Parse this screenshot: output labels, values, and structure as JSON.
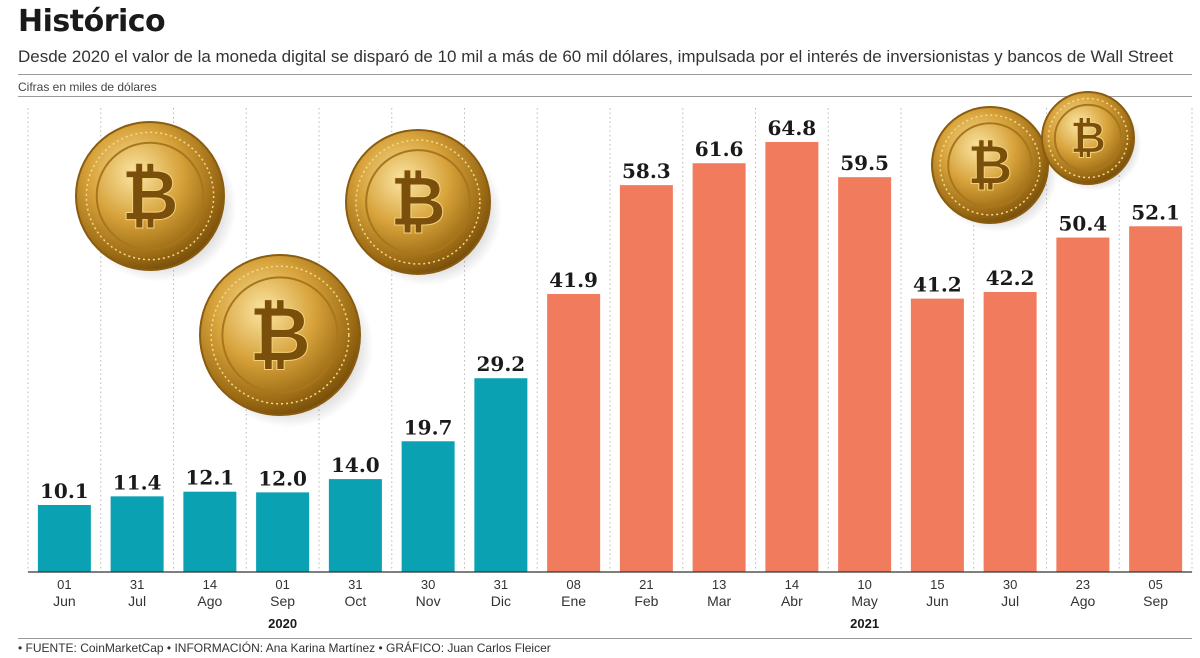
{
  "title": "Histórico",
  "subtitle": "Desde 2020 el valor de la moneda digital se disparó de 10 mil a más de 60 mil dólares, impulsada por el interés de inversionistas y bancos de Wall Street",
  "note": "Cifras en miles de dólares",
  "source": "• FUENTE: CoinMarketCap • INFORMACIÓN: Ana Karina Martínez • GRÁFICO: Juan Carlos Fleicer",
  "colors": {
    "y2020": "#0aa1b3",
    "y2021": "#f07b5d",
    "coin_gold": "#c9962a"
  },
  "chart_data": {
    "type": "bar",
    "categories": [
      {
        "day": "01",
        "month": "Jun",
        "year": "2020"
      },
      {
        "day": "31",
        "month": "Jul",
        "year": "2020"
      },
      {
        "day": "14",
        "month": "Ago",
        "year": "2020"
      },
      {
        "day": "01",
        "month": "Sep",
        "year": "2020"
      },
      {
        "day": "31",
        "month": "Oct",
        "year": "2020"
      },
      {
        "day": "30",
        "month": "Nov",
        "year": "2020"
      },
      {
        "day": "31",
        "month": "Dic",
        "year": "2020"
      },
      {
        "day": "08",
        "month": "Ene",
        "year": "2021"
      },
      {
        "day": "21",
        "month": "Feb",
        "year": "2021"
      },
      {
        "day": "13",
        "month": "Mar",
        "year": "2021"
      },
      {
        "day": "14",
        "month": "Abr",
        "year": "2021"
      },
      {
        "day": "10",
        "month": "May",
        "year": "2021"
      },
      {
        "day": "15",
        "month": "Jun",
        "year": "2021"
      },
      {
        "day": "30",
        "month": "Jul",
        "year": "2021"
      },
      {
        "day": "23",
        "month": "Ago",
        "year": "2021"
      },
      {
        "day": "05",
        "month": "Sep",
        "year": "2021"
      }
    ],
    "values": [
      10.1,
      11.4,
      12.1,
      12.0,
      14.0,
      19.7,
      29.2,
      41.9,
      58.3,
      61.6,
      64.8,
      59.5,
      41.2,
      42.2,
      50.4,
      52.1
    ],
    "value_labels": [
      "10.1",
      "11.4",
      "12.1",
      "12.0",
      "14.0",
      "19.7",
      "29.2",
      "41.9",
      "58.3",
      "61.6",
      "64.8",
      "59.5",
      "41.2",
      "42.2",
      "50.4",
      "52.1"
    ],
    "years": [
      "2020",
      "2021"
    ],
    "ylim": [
      0,
      70
    ],
    "grid": "vertical-dotted",
    "legend": "none"
  }
}
